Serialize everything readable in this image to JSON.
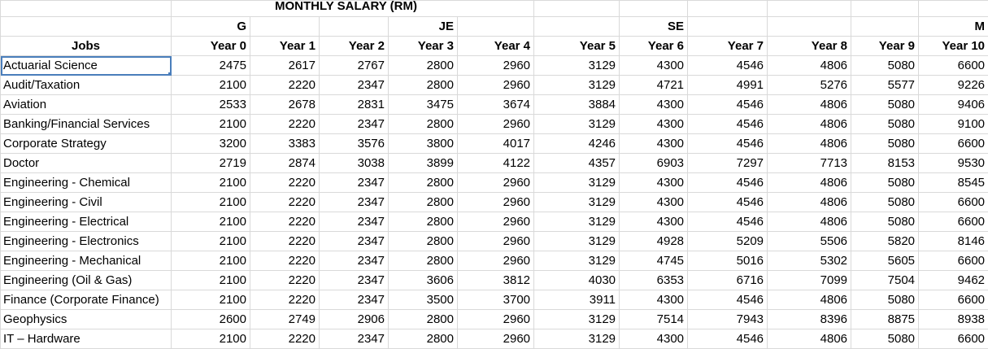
{
  "title": "MONTHLY SALARY (RM)",
  "grade_row": [
    null,
    "G",
    null,
    null,
    "JE",
    null,
    null,
    "SE",
    null,
    null,
    null,
    "M"
  ],
  "columns": [
    "Jobs",
    "Year 0",
    "Year 1",
    "Year 2",
    "Year 3",
    "Year 4",
    "Year 5",
    "Year 6",
    "Year 7",
    "Year 8",
    "Year 9",
    "Year 10"
  ],
  "rows": [
    [
      "Actuarial Science",
      2475,
      2617,
      2767,
      2800,
      2960,
      3129,
      4300,
      4546,
      4806,
      5080,
      6600
    ],
    [
      "Audit/Taxation",
      2100,
      2220,
      2347,
      2800,
      2960,
      3129,
      4721,
      4991,
      5276,
      5577,
      9226
    ],
    [
      "Aviation",
      2533,
      2678,
      2831,
      3475,
      3674,
      3884,
      4300,
      4546,
      4806,
      5080,
      9406
    ],
    [
      "Banking/Financial Services",
      2100,
      2220,
      2347,
      2800,
      2960,
      3129,
      4300,
      4546,
      4806,
      5080,
      9100
    ],
    [
      "Corporate Strategy",
      3200,
      3383,
      3576,
      3800,
      4017,
      4246,
      4300,
      4546,
      4806,
      5080,
      6600
    ],
    [
      "Doctor",
      2719,
      2874,
      3038,
      3899,
      4122,
      4357,
      6903,
      7297,
      7713,
      8153,
      9530
    ],
    [
      "Engineering - Chemical",
      2100,
      2220,
      2347,
      2800,
      2960,
      3129,
      4300,
      4546,
      4806,
      5080,
      8545
    ],
    [
      "Engineering - Civil",
      2100,
      2220,
      2347,
      2800,
      2960,
      3129,
      4300,
      4546,
      4806,
      5080,
      6600
    ],
    [
      "Engineering - Electrical",
      2100,
      2220,
      2347,
      2800,
      2960,
      3129,
      4300,
      4546,
      4806,
      5080,
      6600
    ],
    [
      "Engineering - Electronics",
      2100,
      2220,
      2347,
      2800,
      2960,
      3129,
      4928,
      5209,
      5506,
      5820,
      8146
    ],
    [
      "Engineering - Mechanical",
      2100,
      2220,
      2347,
      2800,
      2960,
      3129,
      4745,
      5016,
      5302,
      5605,
      6600
    ],
    [
      "Engineering (Oil & Gas)",
      2100,
      2220,
      2347,
      3606,
      3812,
      4030,
      6353,
      6716,
      7099,
      7504,
      9462
    ],
    [
      "Finance (Corporate Finance)",
      2100,
      2220,
      2347,
      3500,
      3700,
      3911,
      4300,
      4546,
      4806,
      5080,
      6600
    ],
    [
      "Geophysics",
      2600,
      2749,
      2906,
      2800,
      2960,
      3129,
      7514,
      7943,
      8396,
      8875,
      8938
    ],
    [
      "IT – Hardware",
      2100,
      2220,
      2347,
      2800,
      2960,
      3129,
      4300,
      4546,
      4806,
      5080,
      6600
    ]
  ]
}
